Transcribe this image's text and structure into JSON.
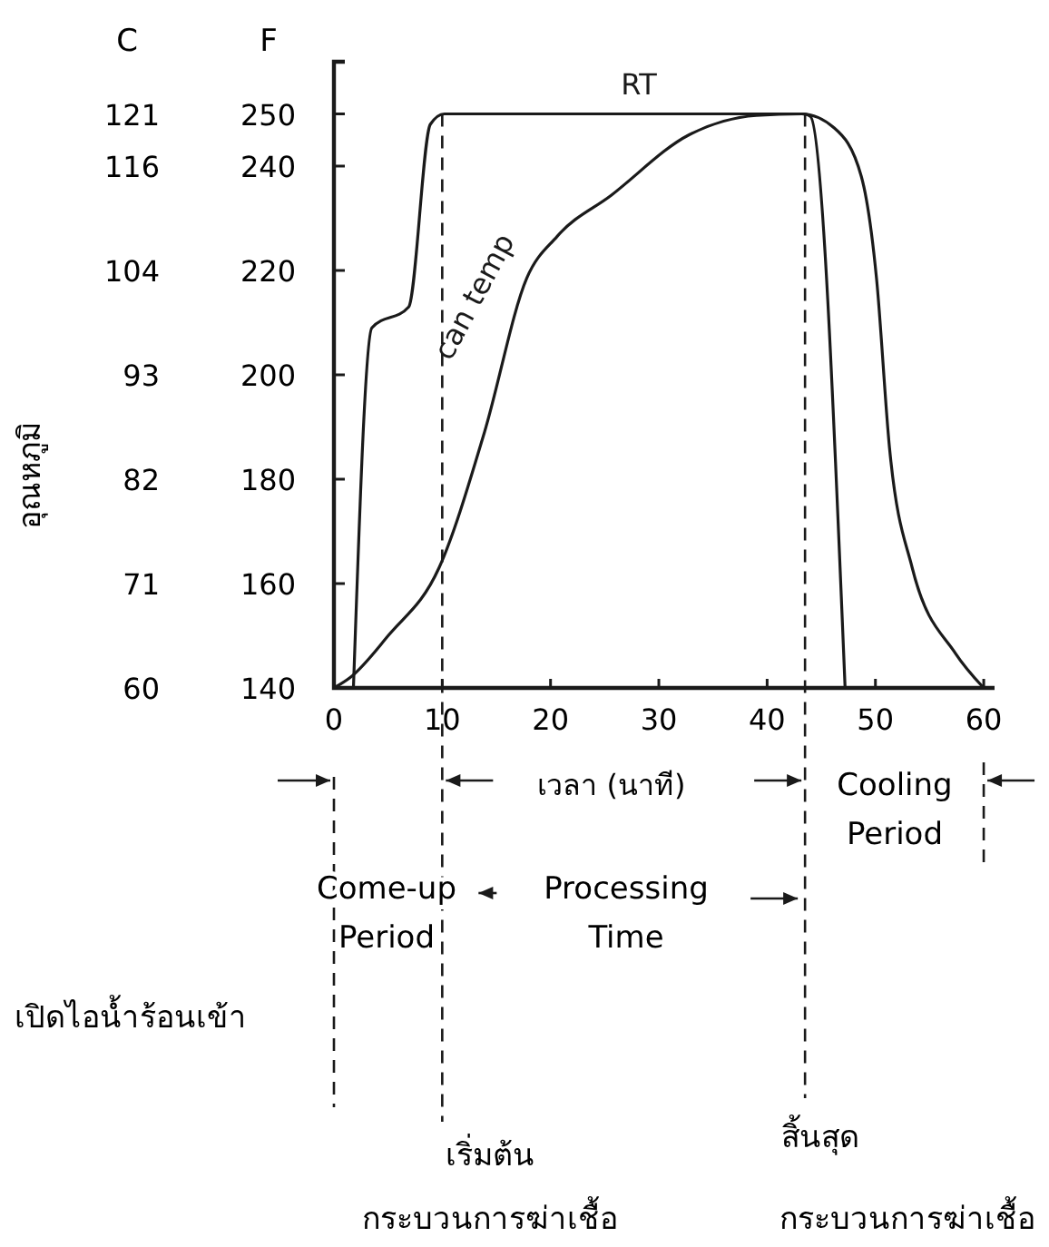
{
  "chart_data": {
    "type": "line",
    "xlabel": "เวลา (นาที)",
    "ylabel": "F",
    "y2label": "C",
    "xlim": [
      0,
      61
    ],
    "xticks": [
      0,
      10,
      20,
      30,
      40,
      50,
      60
    ],
    "ylim": [
      140,
      260
    ],
    "yticks": [
      140,
      160,
      180,
      200,
      220,
      240,
      250
    ],
    "y2lim": [
      60,
      126.67
    ],
    "y2ticks": [
      {
        "value": 60,
        "label": "60"
      },
      {
        "value": 71.11,
        "label": "71"
      },
      {
        "value": 82.22,
        "label": "82"
      },
      {
        "value": 93.33,
        "label": "93"
      },
      {
        "value": 104.44,
        "label": "104"
      },
      {
        "value": 115.56,
        "label": "116"
      },
      {
        "value": 121.11,
        "label": "121"
      }
    ],
    "line_style": "solid",
    "series": [
      {
        "name": "RT",
        "color": "#1a1a1a",
        "x": [
          1.8,
          3.5,
          6.9,
          8.9,
          10.2,
          43.4,
          44,
          47.2
        ],
        "values": [
          140,
          209,
          213,
          248,
          250,
          250,
          249.5,
          140
        ]
      },
      {
        "name": "can temp",
        "color": "#1a1a1a",
        "x": [
          0,
          1.5,
          5,
          9.7,
          13.9,
          17.8,
          20.6,
          25.6,
          32.8,
          39,
          43.2,
          46.2,
          48.7,
          50.1,
          51.3,
          53.4,
          57.4,
          60
        ],
        "values": [
          140,
          142,
          150,
          163,
          189,
          218.5,
          226.5,
          234.4,
          246,
          249.7,
          250,
          247.3,
          238,
          218.5,
          186,
          163,
          146.6,
          140
        ]
      }
    ],
    "ref_lines": [
      {
        "axis": "x",
        "value": 10,
        "line_style": "dashed"
      },
      {
        "axis": "x",
        "value": 43.5,
        "line_style": "dashed"
      }
    ],
    "annotations": [
      "อุณหภูมิ",
      "Cooling\nPeriod",
      "Come-up\nPeriod",
      "Processing\nTime",
      "เปิดไอน้ำร้อนเข้า",
      "เริ่มต้น\nกระบวนการฆ่าเชื้อ",
      "สิ้นสุด\nกระบวนการฆ่าเชื้อ"
    ]
  }
}
